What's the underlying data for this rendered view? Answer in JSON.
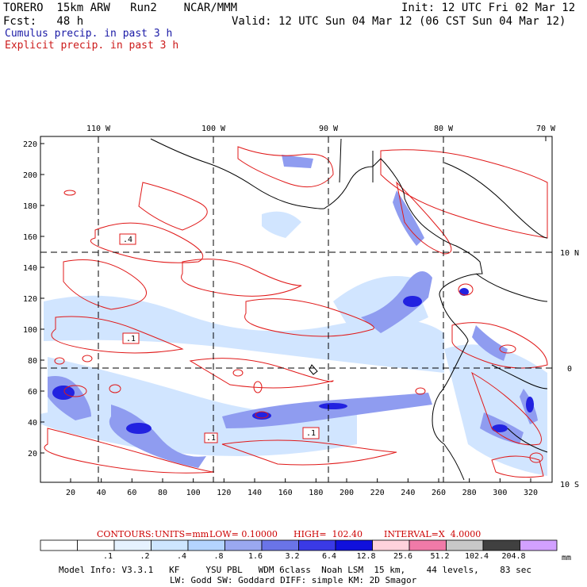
{
  "header": {
    "model_line": "TORERO  15km ARW   Run2    NCAR/MMM",
    "init_line": "Init: 12 UTC Fri 02 Mar 12",
    "fcst_line": "Fcst:   48 h",
    "valid_line": "Valid: 12 UTC Sun 04 Mar 12 (06 CST Sun 04 Mar 12)",
    "cumulus_label": "Cumulus precip. in past 3 h",
    "explicit_label": "Explicit precip. in past 3 h"
  },
  "map": {
    "lon_labels": [
      "110 W",
      "100 W",
      "90 W",
      "80 W",
      "70 W"
    ],
    "lat_labels": [
      "10 N",
      "0",
      "10 S"
    ],
    "y_ticks": [
      "220",
      "200",
      "180",
      "160",
      "140",
      "120",
      "100",
      "80",
      "60",
      "40",
      "20"
    ],
    "x_ticks": [
      "20",
      "40",
      "60",
      "80",
      "100",
      "120",
      "140",
      "160",
      "180",
      "200",
      "220",
      "240",
      "260",
      "280",
      "300",
      "320"
    ],
    "box_labels": [
      ".4",
      ".1",
      ".1",
      ".1"
    ],
    "colors": {
      "contour": "#e01818",
      "coast": "#000000",
      "grid": "#000000"
    }
  },
  "contour_caption": {
    "title": "CONTOURS:",
    "units": "UNITS=mm",
    "low": "LOW= 0.10000",
    "high": "HIGH=  102.40",
    "interval": "INTERVAL=X  4.0000"
  },
  "legend": {
    "labels": [
      ".1",
      ".2",
      ".4",
      ".8",
      "1.6",
      "3.2",
      "6.4",
      "12.8",
      "25.6",
      "51.2",
      "102.4",
      "204.8"
    ],
    "unit": "mm",
    "colors": [
      "#ffffff",
      "#ffffff",
      "#e6f2ff",
      "#cde6ff",
      "#b4d4ff",
      "#9aa8f0",
      "#6a74e8",
      "#3a3ae6",
      "#1010dc",
      "#ffd2dc",
      "#f07aa8",
      "#c8c8c8",
      "#404040",
      "#d2a0ff"
    ]
  },
  "model_info": {
    "line1": "Model Info: V3.3.1   KF     YSU PBL   WDM 6class  Noah LSM  15 km,    44 levels,    83 sec",
    "line2": "LW: Godd SW: Goddard DIFF: simple KM: 2D Smagor"
  }
}
